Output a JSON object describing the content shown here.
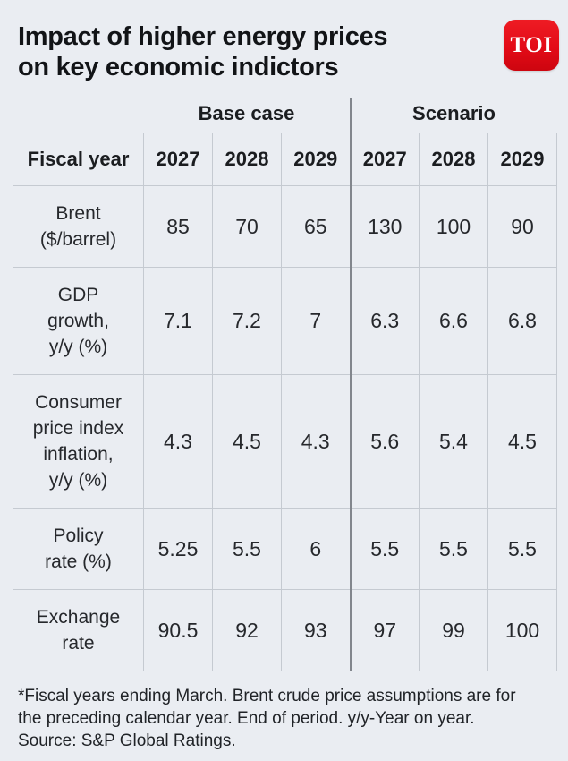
{
  "header": {
    "title": "Impact of higher energy prices\non key economic indictors",
    "logo_text": "TOI"
  },
  "chart_data": {
    "type": "table",
    "title": "Impact of higher energy prices on key economic indictors",
    "row_header": "Fiscal year",
    "column_groups": [
      {
        "label": "Base case",
        "span": 3
      },
      {
        "label": "Scenario",
        "span": 3
      }
    ],
    "years": [
      "2027",
      "2028",
      "2029"
    ],
    "rows": [
      {
        "label": "Brent ($/barrel)",
        "label_display": "Brent\n($/barrel)",
        "base_case": [
          85,
          70,
          65
        ],
        "scenario": [
          130,
          100,
          90
        ]
      },
      {
        "label": "GDP growth, y/y (%)",
        "label_display": "GDP\ngrowth,\ny/y (%)",
        "base_case": [
          7.1,
          7.2,
          7
        ],
        "scenario": [
          6.3,
          6.6,
          6.8
        ]
      },
      {
        "label": "Consumer price index inflation, y/y (%)",
        "label_display": "Consumer\nprice index\ninflation,\ny/y (%)",
        "base_case": [
          4.3,
          4.5,
          4.3
        ],
        "scenario": [
          5.6,
          5.4,
          4.5
        ]
      },
      {
        "label": "Policy rate (%)",
        "label_display": "Policy\nrate (%)",
        "base_case": [
          5.25,
          5.5,
          6
        ],
        "scenario": [
          5.5,
          5.5,
          5.5
        ]
      },
      {
        "label": "Exchange rate",
        "label_display": "Exchange\nrate",
        "base_case": [
          90.5,
          92,
          93
        ],
        "scenario": [
          97,
          99,
          100
        ]
      }
    ],
    "footnote": "*Fiscal years ending March. Brent crude price assumptions are for the preceding calendar year. End of period. y/y-Year on year.",
    "source": "Source: S&P Global Ratings."
  },
  "footer": {
    "note": "*Fiscal years ending March. Brent crude price assumptions are for\nthe preceding calendar year. End of period. y/y-Year on year.\nSource: S&P Global Ratings."
  },
  "colors": {
    "background": "#eaedf2",
    "cell_border": "#c5cad1",
    "group_divider": "#82868d",
    "logo_red": "#e30b17",
    "text": "#1b1d20"
  }
}
